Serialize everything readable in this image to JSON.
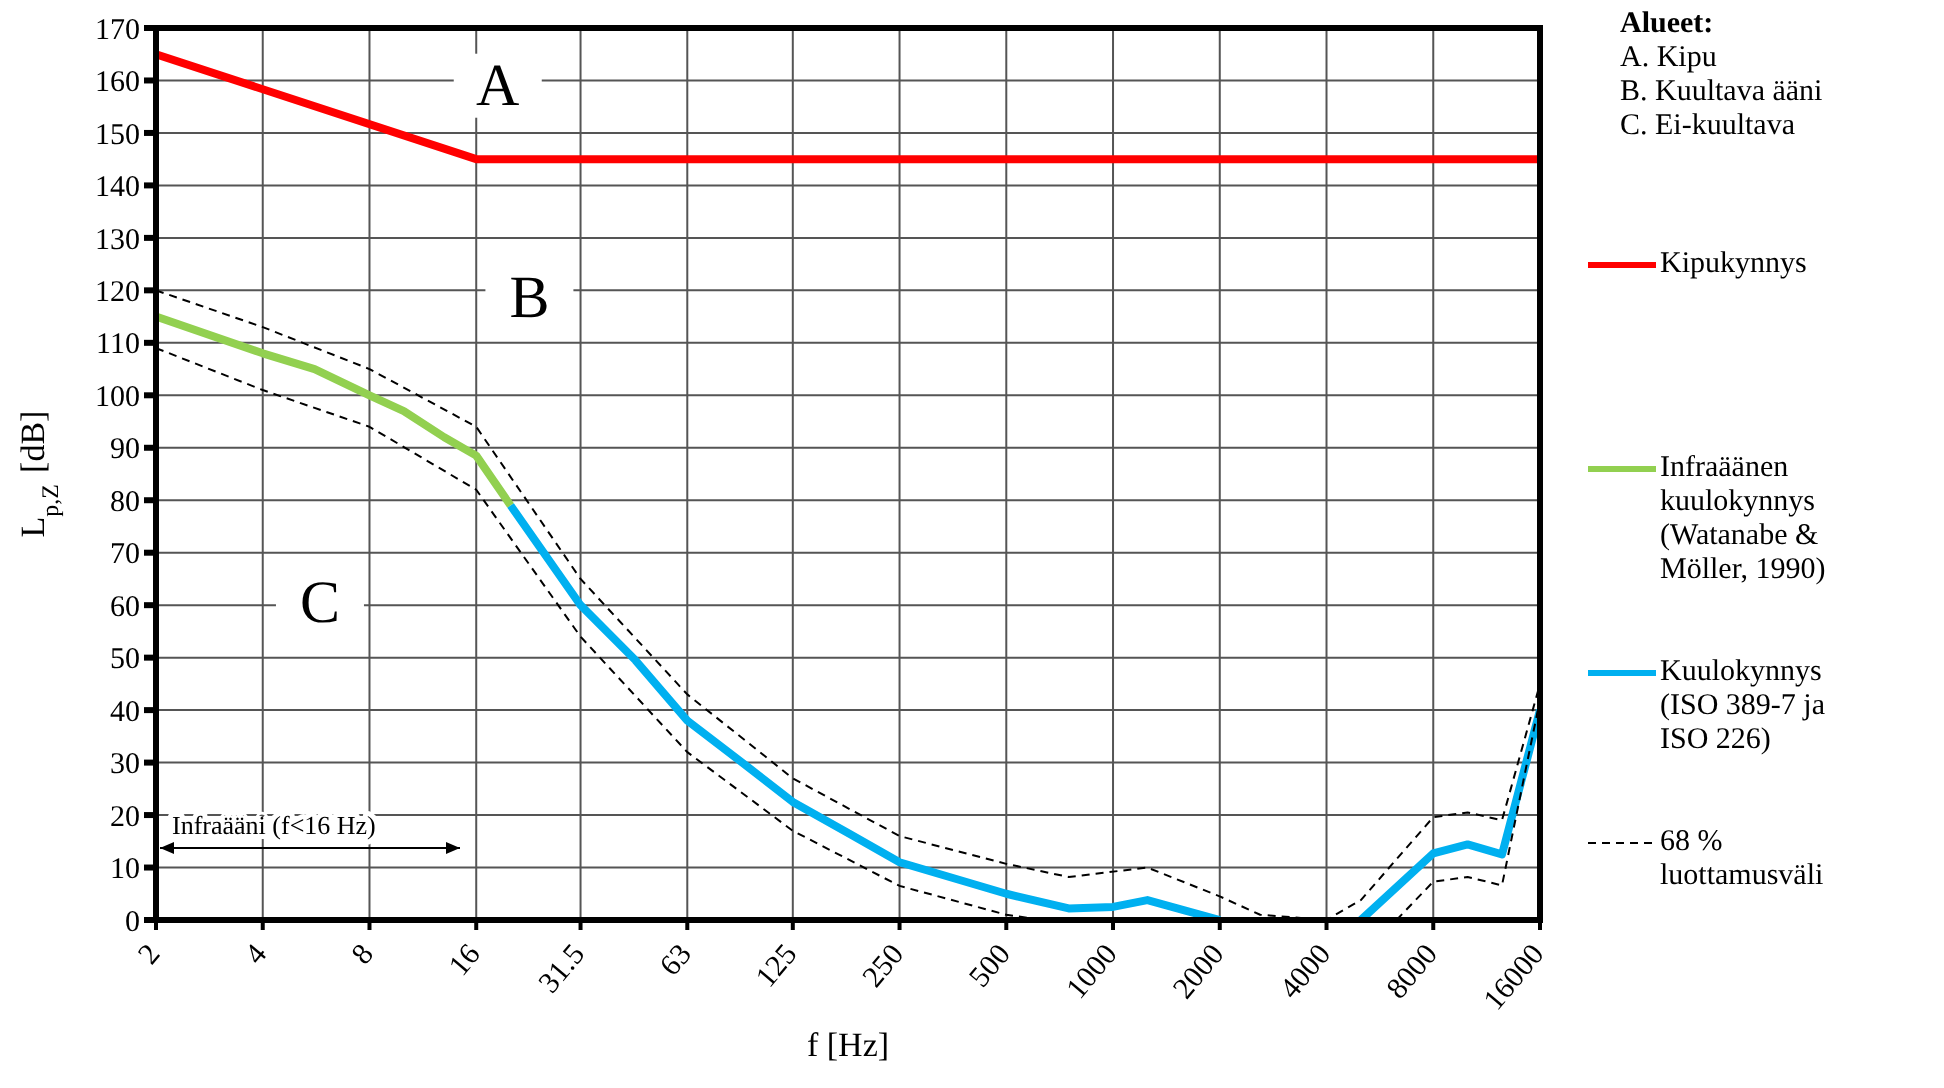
{
  "chart_data": {
    "type": "line",
    "xlabel": "f [Hz]",
    "ylabel": "L$_{p,Z}$ [dB]",
    "legend_title": "Alueet:",
    "log": "x",
    "xlim": [
      2,
      16000
    ],
    "xticks": [
      2,
      4,
      8,
      16,
      31.5,
      63,
      125,
      250,
      500,
      1000,
      2000,
      4000,
      8000,
      16000
    ],
    "ylim": [
      0,
      170
    ],
    "yticks": [
      0,
      10,
      20,
      30,
      40,
      50,
      60,
      70,
      80,
      90,
      100,
      110,
      120,
      130,
      140,
      150,
      160,
      170
    ],
    "grid": true,
    "legend": "right",
    "marker": "none",
    "series": [
      {
        "name": "Kipukynnys",
        "color": "#ff0000",
        "x": [
          2,
          16,
          16000
        ],
        "values": [
          165,
          145,
          145
        ]
      },
      {
        "name": "Infraäänen kuulokynnys (Watanabe & Möller, 1990)",
        "color": "#92d050",
        "x": [
          2,
          4,
          5.6,
          8,
          10,
          13,
          16,
          20
        ],
        "values": [
          115,
          108,
          105,
          100,
          97,
          92,
          88.5,
          79
        ]
      },
      {
        "name": "Kuulokynnys (ISO 389-7 ja ISO 226)",
        "color": "#00b0f0",
        "x": [
          20,
          31.5,
          45,
          63,
          90,
          125,
          180,
          250,
          500,
          750,
          1000,
          1250,
          1600,
          2000,
          3150,
          5000,
          8000,
          10000,
          12500,
          16000
        ],
        "values": [
          79,
          60,
          49.5,
          38,
          30,
          22.5,
          16.5,
          11,
          5,
          2.2,
          2.5,
          3.8,
          1.8,
          0,
          null,
          0,
          12.7,
          14.4,
          12.5,
          40
        ]
      },
      {
        "name": "68 % luottamusväli",
        "color": "#000000",
        "line_style": "dashed",
        "x": [
          2,
          4,
          8,
          16,
          31.5,
          63,
          125,
          250,
          500,
          750,
          1250,
          2000,
          2600,
          4000,
          5000,
          8000,
          10000,
          12500,
          16000
        ],
        "values": [
          120,
          113,
          105,
          94,
          65,
          43,
          27,
          16,
          10.7,
          8.2,
          10,
          4.5,
          1,
          0,
          3.8,
          19.6,
          20.5,
          19,
          45
        ]
      },
      {
        "color": "#000000",
        "line_style": "dashed",
        "x": [
          2,
          4,
          8,
          16,
          31.5,
          63,
          125,
          250,
          500,
          630,
          6300,
          8000,
          10000,
          12500,
          16000
        ],
        "values": [
          109,
          101,
          94,
          82,
          54,
          32,
          17,
          6.5,
          1,
          0,
          0,
          7.3,
          8.2,
          6.6,
          42
        ]
      }
    ],
    "annotations": [
      "A. Kipu",
      "B. Kuultava ääni",
      "C. Ei-kuultava",
      "Infraääni (f<16 Hz)",
      {
        "text": "A",
        "x": 18.4,
        "y": 159
      },
      {
        "text": "B",
        "x": 22.6,
        "y": 118.5
      },
      {
        "text": "C",
        "x": 5.8,
        "y": 60.5
      }
    ]
  }
}
